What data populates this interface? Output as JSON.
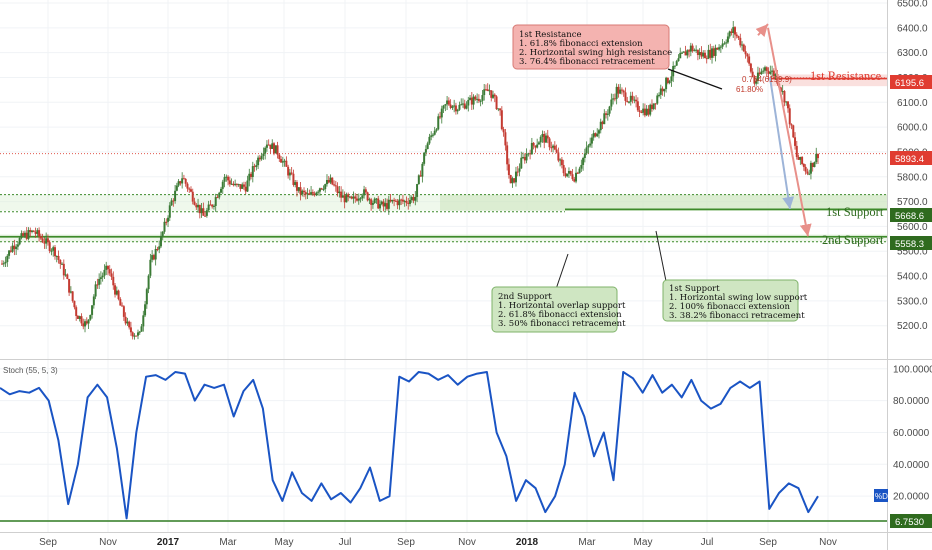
{
  "chart_data": [
    {
      "type": "candlestick",
      "ylim": [
        5090,
        6500
      ],
      "y_ticks": [
        "6500.0",
        "6400.0",
        "6300.0",
        "6200.0",
        "6100.0",
        "6000.0",
        "5900.0",
        "5800.0",
        "5700.0",
        "5600.0",
        "5500.0",
        "5400.0",
        "5300.0",
        "5200.0"
      ],
      "x_ticks": [
        "Sep",
        "Nov",
        "2017",
        "Mar",
        "May",
        "Jul",
        "Sep",
        "Nov",
        "2018",
        "Mar",
        "May",
        "Jul",
        "Sep",
        "Nov"
      ],
      "bold_ticks": [
        "2017",
        "2018"
      ],
      "approx_closes": [
        5450,
        5520,
        5560,
        5580,
        5540,
        5500,
        5400,
        5250,
        5200,
        5380,
        5430,
        5300,
        5180,
        5160,
        5450,
        5550,
        5700,
        5800,
        5720,
        5640,
        5700,
        5800,
        5760,
        5760,
        5860,
        5940,
        5900,
        5820,
        5740,
        5720,
        5760,
        5780,
        5720,
        5700,
        5740,
        5700,
        5680,
        5700,
        5700,
        5720,
        5920,
        6010,
        6100,
        6080,
        6100,
        6120,
        6150,
        6060,
        5760,
        5860,
        5920,
        5960,
        5920,
        5820,
        5800,
        5890,
        5980,
        6050,
        6150,
        6120,
        6080,
        6060,
        6140,
        6200,
        6280,
        6320,
        6290,
        6300,
        6340,
        6390,
        6320,
        6180,
        6240,
        6210,
        6100,
        5880,
        5820,
        5893.4
      ],
      "levels": [
        {
          "name": "1st Resistance",
          "value": 6195.6,
          "zone_top": 6212,
          "zone_bottom": 6165,
          "color": "#e03c31"
        },
        {
          "name": "1st Support",
          "value": 5668.6,
          "zone_top": 5728,
          "zone_bottom": 5663,
          "color": "#3d8a2a"
        },
        {
          "name": "2nd Support",
          "value": 5558.3,
          "zone_top": 5568,
          "zone_bottom": 5538,
          "color": "#3d8a2a"
        }
      ],
      "current_price": 5893.4,
      "fib_text": "0.764(6199.9)",
      "fib_pct": "61.80%"
    },
    {
      "type": "line",
      "indicator_label": "Stoch (55, 5, 3)",
      "series_tag": "%D",
      "ylim": [
        0,
        103
      ],
      "y_ticks": [
        "100.0000",
        "80.0000",
        "60.0000",
        "40.0000",
        "20.0000"
      ],
      "current_value": 6.753,
      "values": [
        88,
        84,
        86,
        85,
        88,
        80,
        55,
        15,
        40,
        82,
        90,
        82,
        50,
        6,
        60,
        95,
        96,
        93,
        98,
        97,
        80,
        90,
        88,
        90,
        70,
        86,
        93,
        75,
        30,
        17,
        35,
        22,
        17,
        28,
        18,
        22,
        16,
        25,
        38,
        17,
        20,
        95,
        92,
        98,
        97,
        93,
        96,
        90,
        95,
        97,
        98,
        60,
        45,
        17,
        30,
        25,
        10,
        20,
        40,
        85,
        70,
        45,
        60,
        30,
        98,
        94,
        85,
        96,
        85,
        90,
        82,
        93,
        80,
        75,
        78,
        88,
        92,
        88,
        92,
        12,
        22,
        28,
        25,
        10,
        20
      ]
    }
  ],
  "annotations": {
    "resistance_box": [
      "1st Resistance",
      "1. 61.8% fibonacci extension",
      "2. Horizontal swing high resistance",
      "3. 76.4% fibonacci retracement"
    ],
    "support1_box": [
      "1st Support",
      "1. Horizontal swing low support",
      "2. 100% fibonacci extension",
      "3. 38.2% fibonacci retracement"
    ],
    "support2_box": [
      "2nd Support",
      "1. Horizontal overlap support",
      "2. 61.8% fibonacci extension",
      "3. 50% fibonacci retracement"
    ]
  },
  "colors": {
    "up_candle": "#3a7a35",
    "down_candle": "#c43a31",
    "stoch_line": "#1a54c4",
    "price_line": "#e05a4e",
    "support_green": "#3d8a2a",
    "resistance_red": "#e03c31"
  }
}
